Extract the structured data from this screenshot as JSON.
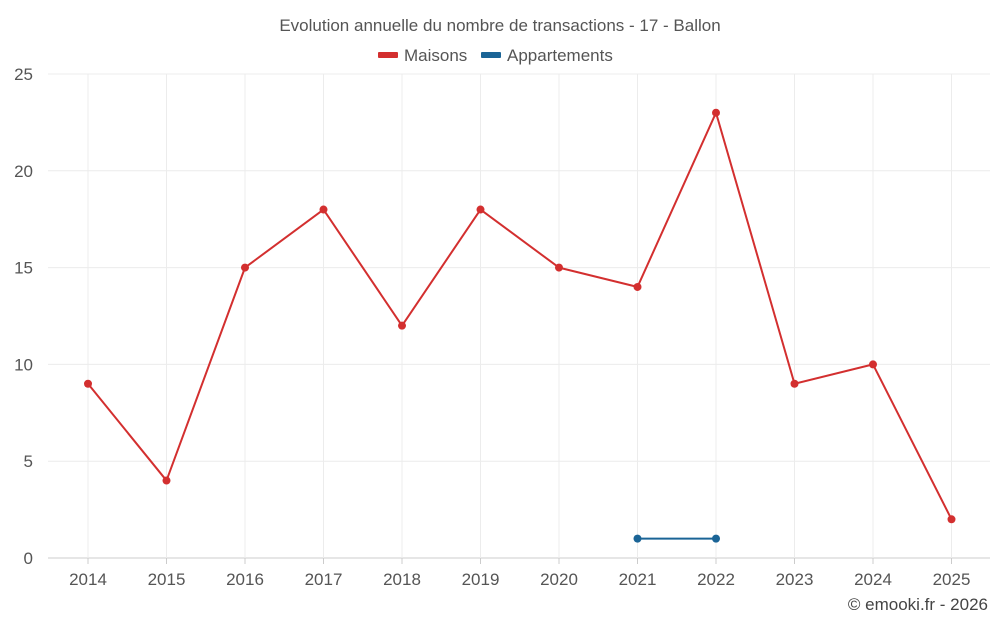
{
  "chart_data": {
    "type": "line",
    "title": "Evolution annuelle du nombre de transactions - 17 - Ballon",
    "categories": [
      "2014",
      "2015",
      "2016",
      "2017",
      "2018",
      "2019",
      "2020",
      "2021",
      "2022",
      "2023",
      "2024",
      "2025"
    ],
    "ylim": [
      0,
      25
    ],
    "yticks": [
      "0",
      "5",
      "10",
      "15",
      "20",
      "25"
    ],
    "ytick_values": [
      0,
      5,
      10,
      15,
      20,
      25
    ],
    "grid": true,
    "legend_position": "top-center",
    "series": [
      {
        "name": "Maisons",
        "color": "#d32f2f",
        "values": [
          9,
          4,
          15,
          18,
          12,
          18,
          15,
          14,
          23,
          9,
          10,
          2
        ]
      },
      {
        "name": "Appartements",
        "color": "#1a6496",
        "values": [
          null,
          null,
          null,
          null,
          null,
          null,
          null,
          1,
          1,
          null,
          null,
          null
        ]
      }
    ]
  },
  "credit": "© emooki.fr - 2026"
}
